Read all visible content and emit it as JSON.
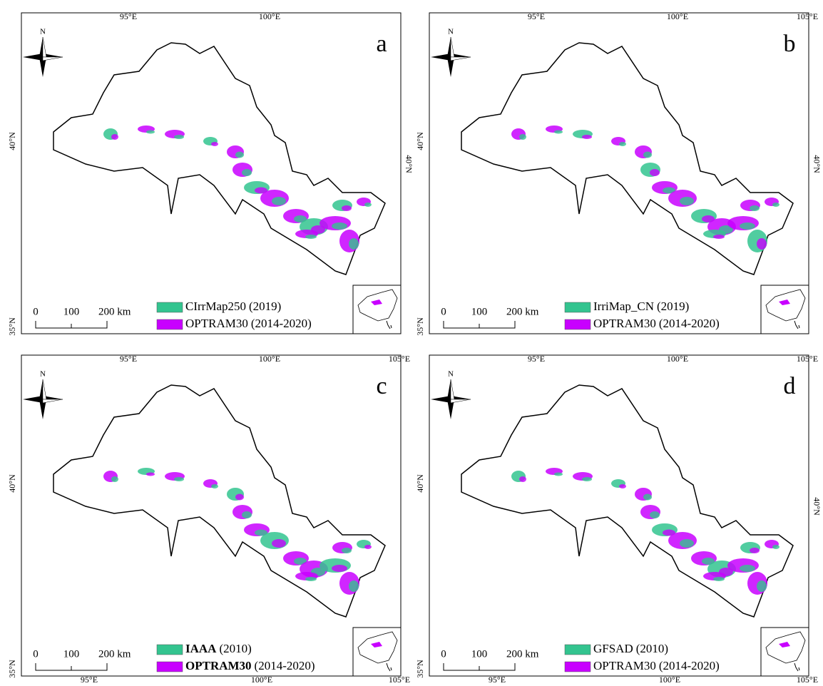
{
  "panels": [
    {
      "letter": "a",
      "north": "N",
      "top_lon_labels": [
        "95°E",
        "100°E"
      ],
      "left_lat_labels": [
        "40°N",
        "35°N"
      ],
      "right_lat_labels": [
        "40°N"
      ],
      "scale_labels": [
        "0",
        "100",
        "200 km"
      ],
      "legend": [
        {
          "name": "CIrrMap250",
          "period": "(2019)",
          "color": "#33c48f",
          "bold": false
        },
        {
          "name": "OPTRAM30",
          "period": "(2014-2020)",
          "color": "#c800ff",
          "bold": false
        }
      ]
    },
    {
      "letter": "b",
      "north": "N",
      "top_lon_labels": [
        "95°E",
        "100°E",
        "105°E"
      ],
      "left_lat_labels": [
        "40°N",
        "35°N"
      ],
      "right_lat_labels": [
        "40°N"
      ],
      "scale_labels": [
        "0",
        "100",
        "200 km"
      ],
      "legend": [
        {
          "name": "IrriMap_CN",
          "period": "(2019)",
          "color": "#33c48f",
          "bold": false
        },
        {
          "name": "OPTRAM30",
          "period": "(2014-2020)",
          "color": "#c800ff",
          "bold": false
        }
      ]
    },
    {
      "letter": "c",
      "north": "N",
      "top_lon_labels": [
        "95°E",
        "100°E",
        "105°E"
      ],
      "bottom_lon_labels": [
        "95°E",
        "100°E",
        "105°E"
      ],
      "left_lat_labels": [
        "40°N",
        "35°N"
      ],
      "scale_labels": [
        "0",
        "100",
        "200 km"
      ],
      "legend": [
        {
          "name": "IAAA",
          "period": "(2010)",
          "color": "#33c48f",
          "bold": true
        },
        {
          "name": "OPTRAM30",
          "period": "(2014-2020)",
          "color": "#c800ff",
          "bold": true
        }
      ]
    },
    {
      "letter": "d",
      "north": "N",
      "top_lon_labels": [
        "95°E",
        "100°E",
        "105°E"
      ],
      "bottom_lon_labels": [
        "95°E",
        "100°E",
        "105°E"
      ],
      "left_lat_labels": [
        "40°N",
        "35°N"
      ],
      "right_lat_labels": [
        "40°N"
      ],
      "scale_labels": [
        "0",
        "100",
        "200 km"
      ],
      "legend": [
        {
          "name": "GFSAD",
          "period": "(2010)",
          "color": "#33c48f",
          "bold": false
        },
        {
          "name": "OPTRAM30",
          "period": "(2014-2020)",
          "color": "#c800ff",
          "bold": false
        }
      ]
    }
  ]
}
